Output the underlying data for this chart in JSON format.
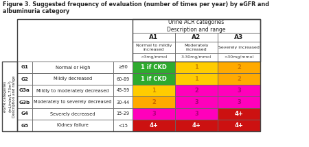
{
  "title": "Figure 3. Suggested frequency of evaluation (number of times per year) by eGFR and\nalbuminuria category",
  "urine_header": "Urine ACR categories\nDescription and range",
  "col_headers": [
    "A1",
    "A2",
    "A3"
  ],
  "col_sub1": [
    "Normal to mildly\nincreased",
    "Moderately\nincreased",
    "Severely increased"
  ],
  "col_sub2": [
    "<3mg/mmol",
    "3-30mg/mmol",
    ">30mg/mmol"
  ],
  "row_labels_g": [
    "G1",
    "G2",
    "G3a",
    "G3b",
    "G4",
    "G5"
  ],
  "row_labels_desc": [
    "Normal or High",
    "Mildly decreased",
    "Mildly to moderately decreased",
    "Moderately to severely decreased",
    "Severely decreased",
    "Kidney failure"
  ],
  "row_labels_range": [
    "≥90",
    "60-89",
    "45-59",
    "30-44",
    "15-29",
    "<15"
  ],
  "egfr_header": "eGFR categories\n(mL/min/1.73m²)\nDescription and range",
  "cell_values": [
    [
      "1 if CKD",
      "1",
      "2"
    ],
    [
      "1 if CKD",
      "1",
      "2"
    ],
    [
      "1",
      "2",
      "3"
    ],
    [
      "2",
      "3",
      "3"
    ],
    [
      "3",
      "3",
      "4+"
    ],
    [
      "4+",
      "4+",
      "4+"
    ]
  ],
  "cell_colors": [
    [
      "#2eaa2e",
      "#ffcc00",
      "#ffaa00"
    ],
    [
      "#2eaa2e",
      "#ffcc00",
      "#ffaa00"
    ],
    [
      "#ffcc00",
      "#ff00bb",
      "#ff00bb"
    ],
    [
      "#ffaa00",
      "#ff00bb",
      "#ff00bb"
    ],
    [
      "#ff00bb",
      "#ff00bb",
      "#cc1111"
    ],
    [
      "#cc1111",
      "#cc1111",
      "#cc1111"
    ]
  ],
  "cell_text_colors": [
    [
      "#ffffff",
      "#cc8800",
      "#cc7700"
    ],
    [
      "#ffffff",
      "#cc8800",
      "#cc7700"
    ],
    [
      "#cc8800",
      "#aa0077",
      "#aa0077"
    ],
    [
      "#cc6600",
      "#aa0077",
      "#aa0077"
    ],
    [
      "#aa0077",
      "#aa0077",
      "#ffffff"
    ],
    [
      "#ffffff",
      "#ffffff",
      "#ffffff"
    ]
  ],
  "background": "#ffffff",
  "text_color": "#222222",
  "title_fontsize": 5.8,
  "header_fontsize": 5.5,
  "colhead_fontsize": 6.5,
  "subhead_fontsize": 4.5,
  "range_fontsize": 4.5,
  "g_fontsize": 5.2,
  "desc_fontsize": 4.8,
  "cell_fontsize": 6.0,
  "egfr_fontsize": 4.0
}
